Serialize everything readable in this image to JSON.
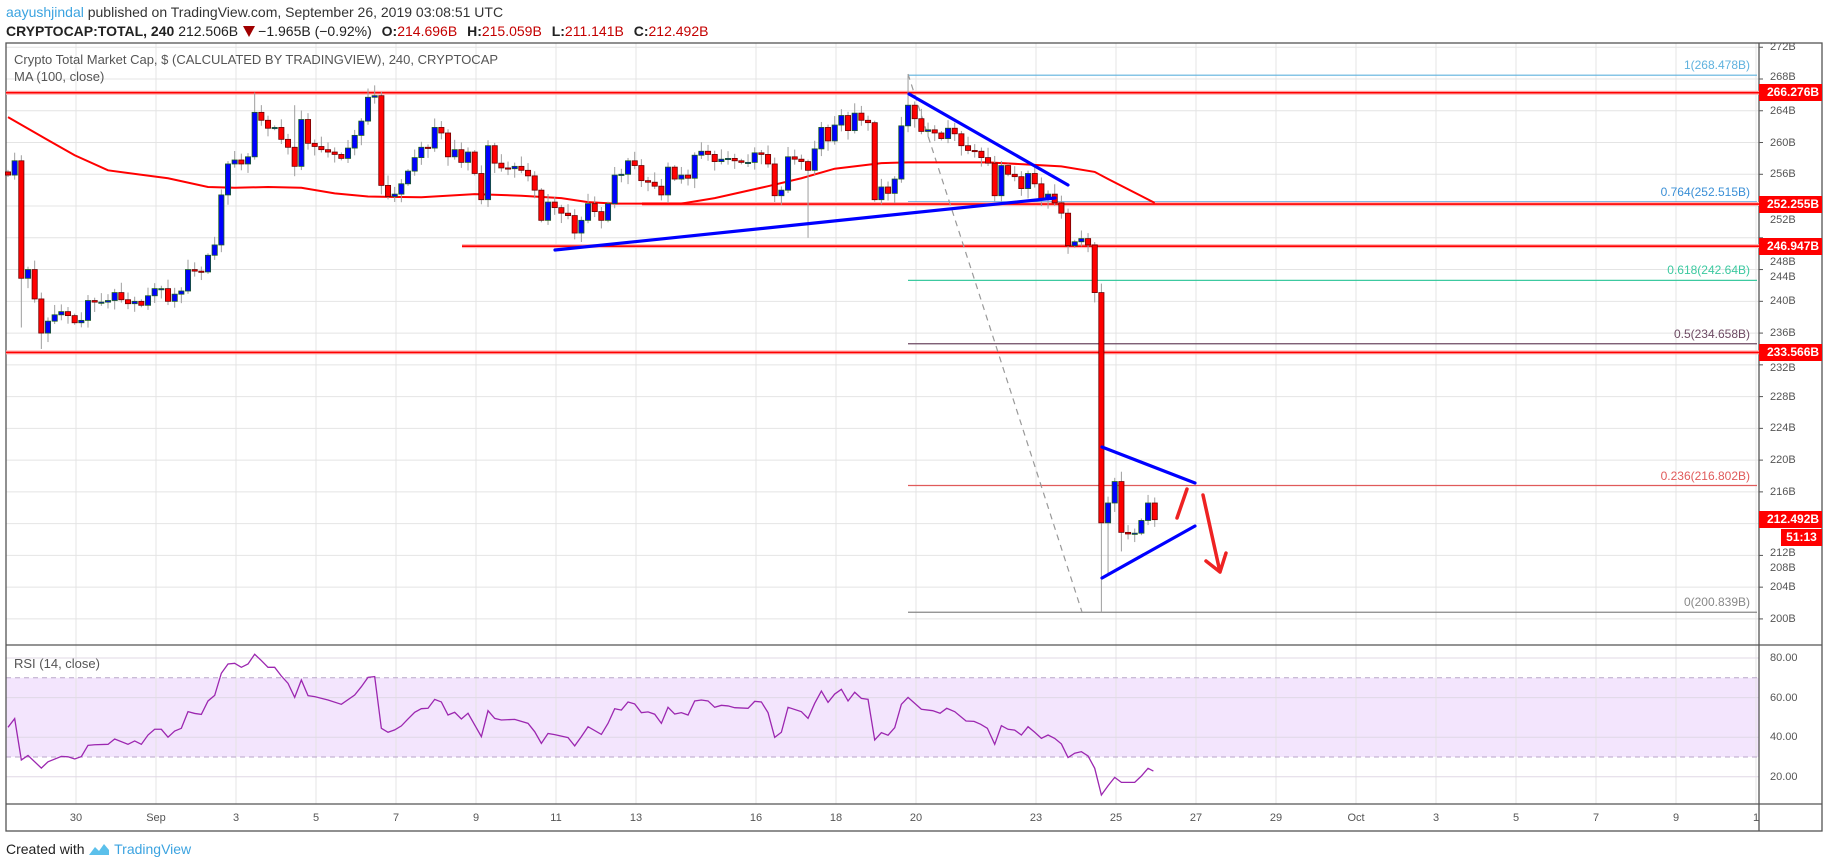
{
  "header": {
    "author": "aayushjindal",
    "published": "published on TradingView.com, September 26, 2019 03:08:51 UTC",
    "symbol": "CRYPTOCAP:TOTAL, 240",
    "last": "212.506B",
    "change": "−1.965B (−0.92%)",
    "o_label": "O:",
    "o": "214.696B",
    "h_label": "H:",
    "h": "215.059B",
    "l_label": "L:",
    "l": "211.141B",
    "c_label": "C:",
    "c": "212.492B"
  },
  "legend": {
    "title": "Crypto Total Market Cap, $ (CALCULATED BY TRADINGVIEW), 240, CRYPTOCAP",
    "ma": "MA (100, close)",
    "rsi": "RSI (14, close)"
  },
  "footer": {
    "created": "Created with",
    "brand": "TradingView"
  },
  "colors": {
    "up": "#0000ff",
    "down": "#ff0000",
    "ma": "#ff0000",
    "rsi": "#9c27b0",
    "level": "#ff0000",
    "trend": "#0000ff"
  },
  "chart_data": {
    "type": "candlestick",
    "title": "Crypto Total Market Cap, $ (CALCULATED BY TRADINGVIEW), 240, CRYPTOCAP",
    "interval": "240",
    "ylim": [
      198,
      273
    ],
    "y_ticks": [
      "272B",
      "268B",
      "264B",
      "260B",
      "256B",
      "252B",
      "248B",
      "244B",
      "240B",
      "236B",
      "232B",
      "228B",
      "224B",
      "220B",
      "216B",
      "212B",
      "208B",
      "204B",
      "200B"
    ],
    "y_tick_values": [
      272,
      268,
      264,
      260,
      256,
      252,
      248,
      244,
      240,
      236,
      232,
      228,
      224,
      220,
      216,
      212,
      208,
      204,
      200
    ],
    "x_ticks": [
      {
        "label": "30",
        "day": 0
      },
      {
        "label": "Sep",
        "day": 2
      },
      {
        "label": "3",
        "day": 4
      },
      {
        "label": "5",
        "day": 6
      },
      {
        "label": "7",
        "day": 8
      },
      {
        "label": "9",
        "day": 10
      },
      {
        "label": "11",
        "day": 12
      },
      {
        "label": "13",
        "day": 14
      },
      {
        "label": "16",
        "day": 17
      },
      {
        "label": "18",
        "day": 19
      },
      {
        "label": "20",
        "day": 21
      },
      {
        "label": "23",
        "day": 24
      },
      {
        "label": "25",
        "day": 26
      },
      {
        "label": "27",
        "day": 28
      },
      {
        "label": "29",
        "day": 30
      },
      {
        "label": "Oct",
        "day": 32
      },
      {
        "label": "3",
        "day": 34
      },
      {
        "label": "5",
        "day": 36
      },
      {
        "label": "7",
        "day": 38
      },
      {
        "label": "9",
        "day": 40
      },
      {
        "label": "1",
        "day": 42
      }
    ],
    "first_open": 256.3,
    "closes": [
      255.9,
      257.7,
      242.9,
      244.0,
      240.3,
      236.0,
      237.5,
      238.3,
      238.7,
      238.2,
      237.3,
      237.6,
      240.1,
      239.9,
      239.9,
      240.1,
      241.1,
      240.2,
      239.7,
      240.0,
      239.5,
      240.7,
      241.6,
      241.6,
      240.0,
      240.9,
      241.3,
      244.0,
      243.8,
      243.7,
      245.8,
      247.1,
      253.4,
      257.3,
      257.8,
      257.3,
      258.2,
      263.8,
      262.8,
      261.8,
      261.9,
      260.4,
      259.4,
      257.0,
      262.9,
      259.9,
      259.5,
      259.1,
      258.8,
      258.5,
      258.0,
      259.3,
      260.9,
      262.7,
      265.7,
      265.9,
      254.6,
      253.2,
      253.5,
      254.8,
      256.4,
      258.1,
      259.4,
      259.3,
      261.9,
      261.2,
      258.2,
      259.1,
      257.5,
      258.8,
      256.1,
      252.8,
      259.6,
      257.4,
      256.8,
      256.7,
      257.0,
      256.5,
      255.8,
      254.0,
      250.2,
      252.5,
      251.8,
      251.1,
      250.8,
      248.6,
      250.2,
      252.3,
      251.3,
      250.2,
      252.3,
      255.9,
      256.0,
      257.7,
      257.1,
      255.2,
      255.0,
      254.5,
      253.4,
      256.9,
      255.4,
      255.9,
      255.5,
      258.4,
      258.9,
      258.5,
      257.6,
      257.9,
      258.0,
      257.7,
      257.5,
      257.5,
      258.7,
      258.5,
      257.3,
      253.3,
      254.0,
      258.2,
      257.9,
      257.6,
      256.5,
      259.2,
      261.9,
      260.2,
      262.2,
      263.4,
      261.5,
      263.7,
      262.8,
      262.5,
      252.8,
      254.4,
      253.6,
      255.4,
      262.1,
      264.7,
      263.0,
      261.4,
      261.6,
      261.2,
      260.5,
      261.8,
      261.1,
      259.6,
      259.0,
      258.9,
      258.1,
      257.4,
      253.3,
      257.1,
      256.0,
      255.7,
      254.2,
      256.1,
      254.8,
      252.8,
      253.5,
      252.4,
      251.1,
      247.0,
      247.5,
      247.9,
      247.1,
      241.1,
      212.1,
      214.6,
      217.3,
      210.9,
      210.7,
      210.8,
      212.4,
      214.6,
      212.5
    ],
    "high_overrides": {
      "135": 268.478,
      "54": 266.8,
      "55": 267.2,
      "37": 266.3,
      "43": 264.7
    },
    "low_overrides": {
      "164": 200.839,
      "5": 234.0,
      "2": 236.7,
      "120": 248.0,
      "165": 205.5,
      "167": 208.5
    },
    "ma100": [
      [
        0,
        263.2
      ],
      [
        6,
        260.3
      ],
      [
        10,
        258.4
      ],
      [
        15,
        256.5
      ],
      [
        24,
        255.5
      ],
      [
        30,
        254.4
      ],
      [
        34,
        254.3
      ],
      [
        39,
        254.4
      ],
      [
        44,
        254.3
      ],
      [
        49,
        253.6
      ],
      [
        54,
        253.2
      ],
      [
        62,
        253.1
      ],
      [
        70,
        253.5
      ],
      [
        77,
        253.3
      ],
      [
        83,
        253.0
      ],
      [
        87,
        252.5
      ],
      [
        91,
        252.3
      ],
      [
        95,
        252.3
      ],
      [
        101,
        252.3
      ],
      [
        106,
        253.0
      ],
      [
        114,
        254.5
      ],
      [
        119,
        255.5
      ],
      [
        124,
        256.7
      ],
      [
        131,
        257.4
      ],
      [
        135,
        257.5
      ],
      [
        147,
        257.5
      ],
      [
        158,
        257.0
      ],
      [
        163,
        256.3
      ],
      [
        165,
        255.4
      ],
      [
        172,
        252.4
      ]
    ],
    "levels": [
      266.276,
      252.255,
      246.947,
      233.566
    ],
    "last_price": 212.492,
    "countdown": "51:13",
    "fib": [
      {
        "label": "1(268.478B)",
        "value": 268.478,
        "color": "#5fb2de"
      },
      {
        "label": "0.764(252.515B)",
        "value": 252.515,
        "color": "#3a8fd6"
      },
      {
        "label": "0.618(242.64B)",
        "value": 242.64,
        "color": "#3cc9a0"
      },
      {
        "label": "0.5(234.658B)",
        "value": 234.658,
        "color": "#6e4a63"
      },
      {
        "label": "0.236(216.802B)",
        "value": 216.802,
        "color": "#e05a5a"
      },
      {
        "label": "0(200.839B)",
        "value": 200.839,
        "color": "#888888"
      }
    ],
    "badges": [
      "266.276B",
      "252.255B",
      "246.947B",
      "233.566B",
      "212.492B"
    ],
    "rsi": {
      "label": "RSI (14, close)",
      "ylim": [
        5,
        85
      ],
      "ticks": [
        "80.00",
        "60.00",
        "40.00",
        "20.00"
      ],
      "tick_values": [
        80,
        60,
        40,
        20
      ],
      "band": [
        30,
        70
      ],
      "points": [
        [
          0,
          45.0
        ],
        [
          1,
          49.4
        ],
        [
          2,
          28.5
        ],
        [
          3,
          30.8
        ],
        [
          5,
          24.4
        ],
        [
          6,
          27.6
        ],
        [
          8,
          30.3
        ],
        [
          9,
          30.1
        ],
        [
          10,
          29.0
        ],
        [
          11,
          30.2
        ],
        [
          12,
          35.9
        ],
        [
          13,
          36.2
        ],
        [
          15,
          36.4
        ],
        [
          16,
          39.1
        ],
        [
          18,
          36.4
        ],
        [
          19,
          38.1
        ],
        [
          20,
          36.4
        ],
        [
          21,
          41.1
        ],
        [
          22,
          44.0
        ],
        [
          23,
          44.0
        ],
        [
          24,
          40.0
        ],
        [
          25,
          43.1
        ],
        [
          26,
          44.5
        ],
        [
          27,
          52.9
        ],
        [
          28,
          52.0
        ],
        [
          29,
          51.5
        ],
        [
          30,
          58.3
        ],
        [
          31,
          61.1
        ],
        [
          32,
          72.3
        ],
        [
          33,
          77.0
        ],
        [
          34,
          77.3
        ],
        [
          35,
          75.3
        ],
        [
          36,
          77.0
        ],
        [
          37,
          81.9
        ],
        [
          38,
          78.7
        ],
        [
          39,
          75.3
        ],
        [
          40,
          75.3
        ],
        [
          41,
          70.9
        ],
        [
          42,
          67.2
        ],
        [
          43,
          60.1
        ],
        [
          44,
          68.9
        ],
        [
          45,
          61.0
        ],
        [
          46,
          60.5
        ],
        [
          48,
          58.8
        ],
        [
          50,
          56.6
        ],
        [
          52,
          61.3
        ],
        [
          53,
          65.5
        ],
        [
          54,
          70.2
        ],
        [
          55,
          70.6
        ],
        [
          56,
          44.5
        ],
        [
          57,
          42.5
        ],
        [
          58,
          43.7
        ],
        [
          59,
          45.7
        ],
        [
          60,
          49.2
        ],
        [
          61,
          52.6
        ],
        [
          62,
          54.4
        ],
        [
          63,
          54.6
        ],
        [
          64,
          59.1
        ],
        [
          65,
          57.8
        ],
        [
          66,
          51.2
        ],
        [
          67,
          52.6
        ],
        [
          68,
          49.2
        ],
        [
          69,
          52.1
        ],
        [
          70,
          46.2
        ],
        [
          71,
          40.3
        ],
        [
          72,
          53.4
        ],
        [
          73,
          49.5
        ],
        [
          74,
          48.7
        ],
        [
          76,
          49.0
        ],
        [
          78,
          47.0
        ],
        [
          79,
          42.8
        ],
        [
          80,
          36.9
        ],
        [
          81,
          41.9
        ],
        [
          82,
          41.3
        ],
        [
          84,
          39.8
        ],
        [
          85,
          35.6
        ],
        [
          86,
          40.3
        ],
        [
          87,
          45.3
        ],
        [
          89,
          41.4
        ],
        [
          90,
          47.0
        ],
        [
          91,
          54.4
        ],
        [
          92,
          53.7
        ],
        [
          93,
          57.8
        ],
        [
          94,
          56.8
        ],
        [
          95,
          52.4
        ],
        [
          96,
          52.8
        ],
        [
          97,
          51.6
        ],
        [
          98,
          47.0
        ],
        [
          99,
          55.1
        ],
        [
          100,
          51.7
        ],
        [
          101,
          52.4
        ],
        [
          102,
          51.2
        ],
        [
          103,
          58.3
        ],
        [
          104,
          58.8
        ],
        [
          105,
          58.3
        ],
        [
          106,
          55.1
        ],
        [
          107,
          56.1
        ],
        [
          108,
          55.8
        ],
        [
          109,
          54.9
        ],
        [
          111,
          54.6
        ],
        [
          112,
          58.1
        ],
        [
          113,
          57.8
        ],
        [
          114,
          52.4
        ],
        [
          115,
          39.9
        ],
        [
          116,
          42.5
        ],
        [
          117,
          55.1
        ],
        [
          119,
          52.9
        ],
        [
          120,
          49.5
        ],
        [
          121,
          57.1
        ],
        [
          122,
          63.3
        ],
        [
          123,
          57.6
        ],
        [
          124,
          61.8
        ],
        [
          125,
          64.2
        ],
        [
          126,
          58.3
        ],
        [
          127,
          62.7
        ],
        [
          128,
          59.6
        ],
        [
          129,
          59.1
        ],
        [
          130,
          38.6
        ],
        [
          131,
          42.3
        ],
        [
          132,
          41.0
        ],
        [
          133,
          44.8
        ],
        [
          134,
          56.6
        ],
        [
          135,
          60.1
        ],
        [
          137,
          54.1
        ],
        [
          138.7,
          53.4
        ],
        [
          139.8,
          52.1
        ],
        [
          140.8,
          54.6
        ],
        [
          142,
          52.9
        ],
        [
          143.7,
          48.2
        ],
        [
          144.9,
          48.0
        ],
        [
          145.9,
          46.5
        ],
        [
          146.9,
          44.5
        ],
        [
          148,
          36.4
        ],
        [
          149,
          45.8
        ],
        [
          150,
          44.0
        ],
        [
          151,
          43.6
        ],
        [
          152,
          41.1
        ],
        [
          153,
          45.3
        ],
        [
          154,
          42.5
        ],
        [
          155,
          39.4
        ],
        [
          156,
          41.1
        ],
        [
          157,
          39.4
        ],
        [
          158,
          36.6
        ],
        [
          159,
          29.7
        ],
        [
          160,
          31.9
        ],
        [
          161,
          32.7
        ],
        [
          162,
          30.5
        ],
        [
          163,
          24.3
        ],
        [
          164,
          10.8
        ],
        [
          165,
          15.5
        ],
        [
          166,
          19.7
        ],
        [
          167,
          17.2
        ],
        [
          169,
          17.2
        ],
        [
          170,
          20.4
        ],
        [
          171,
          24.3
        ],
        [
          171.8,
          22.9
        ]
      ]
    }
  }
}
